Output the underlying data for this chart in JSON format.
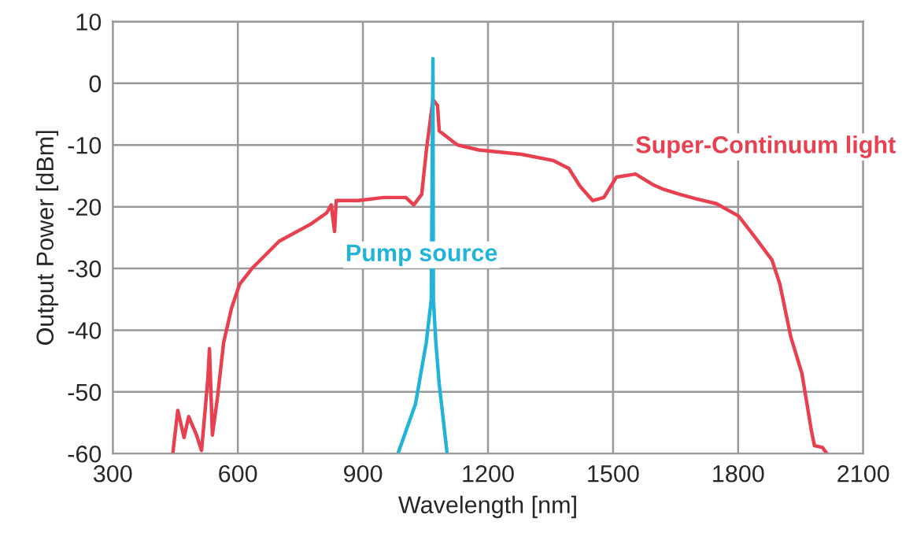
{
  "chart_data": {
    "type": "line",
    "xlabel": "Wavelength [nm]",
    "ylabel": "Output Power [dBm]",
    "xlim": [
      300,
      2100
    ],
    "xticks": [
      300,
      600,
      900,
      1200,
      1500,
      1800,
      2100
    ],
    "ylim": [
      -60,
      10
    ],
    "yticks": [
      -60,
      -50,
      -40,
      -30,
      -20,
      -10,
      0,
      10
    ],
    "grid": true,
    "legend": false,
    "marker": "none",
    "line_style": "solid",
    "series": [
      {
        "name": "Super-Continuum light",
        "color": "#e8404f",
        "x": [
          444,
          456,
          471,
          482,
          501,
          513,
          528,
          532,
          539,
          551,
          566,
          585,
          604,
          634,
          699,
          775,
          813,
          824,
          832,
          836,
          889,
          950,
          1003,
          1022,
          1041,
          1052,
          1068,
          1079,
          1083,
          1117,
          1128,
          1178,
          1280,
          1356,
          1394,
          1421,
          1451,
          1478,
          1508,
          1554,
          1595,
          1622,
          1660,
          1698,
          1748,
          1801,
          1839,
          1881,
          1900,
          1926,
          1953,
          1976,
          1983,
          2002,
          2013
        ],
        "values": [
          -60,
          -53,
          -57.4,
          -54,
          -57,
          -59.5,
          -48,
          -43,
          -57,
          -51,
          -42,
          -36.4,
          -32.6,
          -30,
          -25.6,
          -22.8,
          -21,
          -19.7,
          -24,
          -19,
          -19,
          -18.5,
          -18.5,
          -19.7,
          -18,
          -11,
          -2.6,
          -3.6,
          -7.7,
          -9.5,
          -10,
          -10.8,
          -11.5,
          -12.5,
          -13.8,
          -16.7,
          -19,
          -18.5,
          -15.2,
          -14.7,
          -16.4,
          -17.2,
          -18,
          -18.7,
          -19.5,
          -21.5,
          -24.8,
          -28.6,
          -32.5,
          -41,
          -47,
          -56.4,
          -58.7,
          -59,
          -60
        ]
      },
      {
        "name": "Pump source",
        "color": "#22b4d8",
        "x": [
          984,
          1026,
          1052,
          1064,
          1068,
          1069,
          1075,
          1083,
          1102
        ],
        "values": [
          -60,
          -52,
          -42,
          -35,
          4,
          -35,
          -42,
          -48.7,
          -60
        ]
      }
    ]
  }
}
